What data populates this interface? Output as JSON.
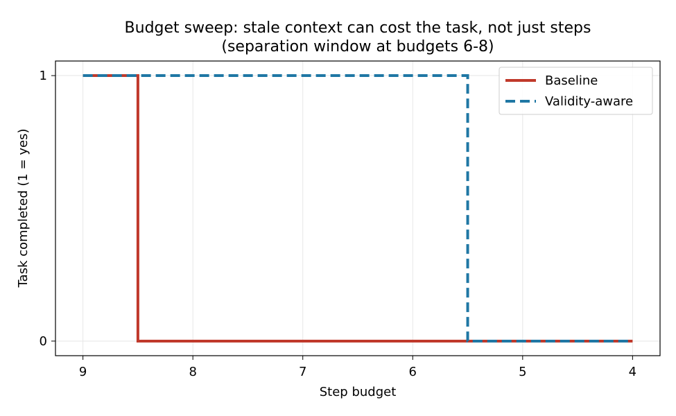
{
  "chart_data": {
    "type": "line",
    "title": "Budget sweep: stale context can cost the task, not just steps",
    "subtitle": "(separation window at budgets 6-8)",
    "xlabel": "Step budget",
    "ylabel": "Task completed (1 = yes)",
    "x": [
      9,
      8,
      7,
      6,
      5,
      4
    ],
    "x_ticks": [
      "9",
      "8",
      "7",
      "6",
      "5",
      "4"
    ],
    "y_ticks": [
      "0",
      "1"
    ],
    "xlim": [
      9.25,
      3.75
    ],
    "ylim": [
      -0.055,
      1.055
    ],
    "x_inverted": true,
    "step": "mid",
    "grid": true,
    "legend_position": "top-right",
    "series": [
      {
        "name": "Baseline",
        "values": [
          1,
          0,
          0,
          0,
          0,
          0
        ],
        "color": "#c0392b",
        "style": "solid"
      },
      {
        "name": "Validity-aware",
        "values": [
          1,
          1,
          1,
          1,
          0,
          0
        ],
        "color": "#1f77a4",
        "style": "dashed"
      }
    ]
  }
}
